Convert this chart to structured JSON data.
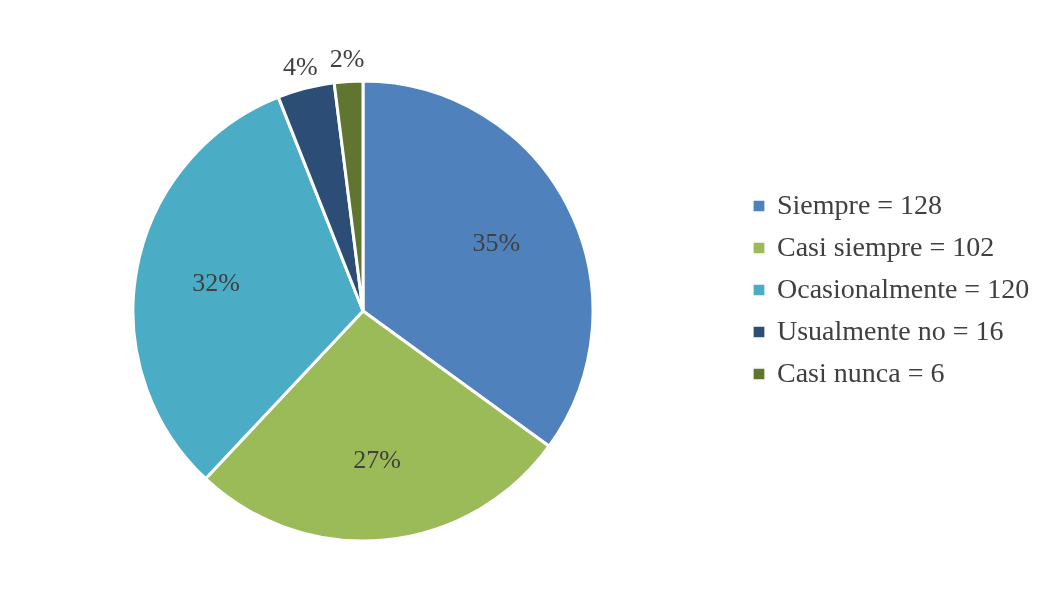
{
  "chart_data": {
    "type": "pie",
    "categories": [
      "Siempre = 128",
      "Casi siempre = 102",
      "Ocasionalmente = 120",
      "Usualmente no = 16",
      "Casi nunca = 6"
    ],
    "values": [
      35,
      27,
      32,
      4,
      2
    ],
    "colors": [
      "#4f81bd",
      "#9bbb59",
      "#4bacc6",
      "#2c4d75",
      "#5f7530"
    ],
    "value_labels": [
      "35%",
      "27%",
      "32%",
      "4%",
      "2%"
    ],
    "legend": "right"
  }
}
